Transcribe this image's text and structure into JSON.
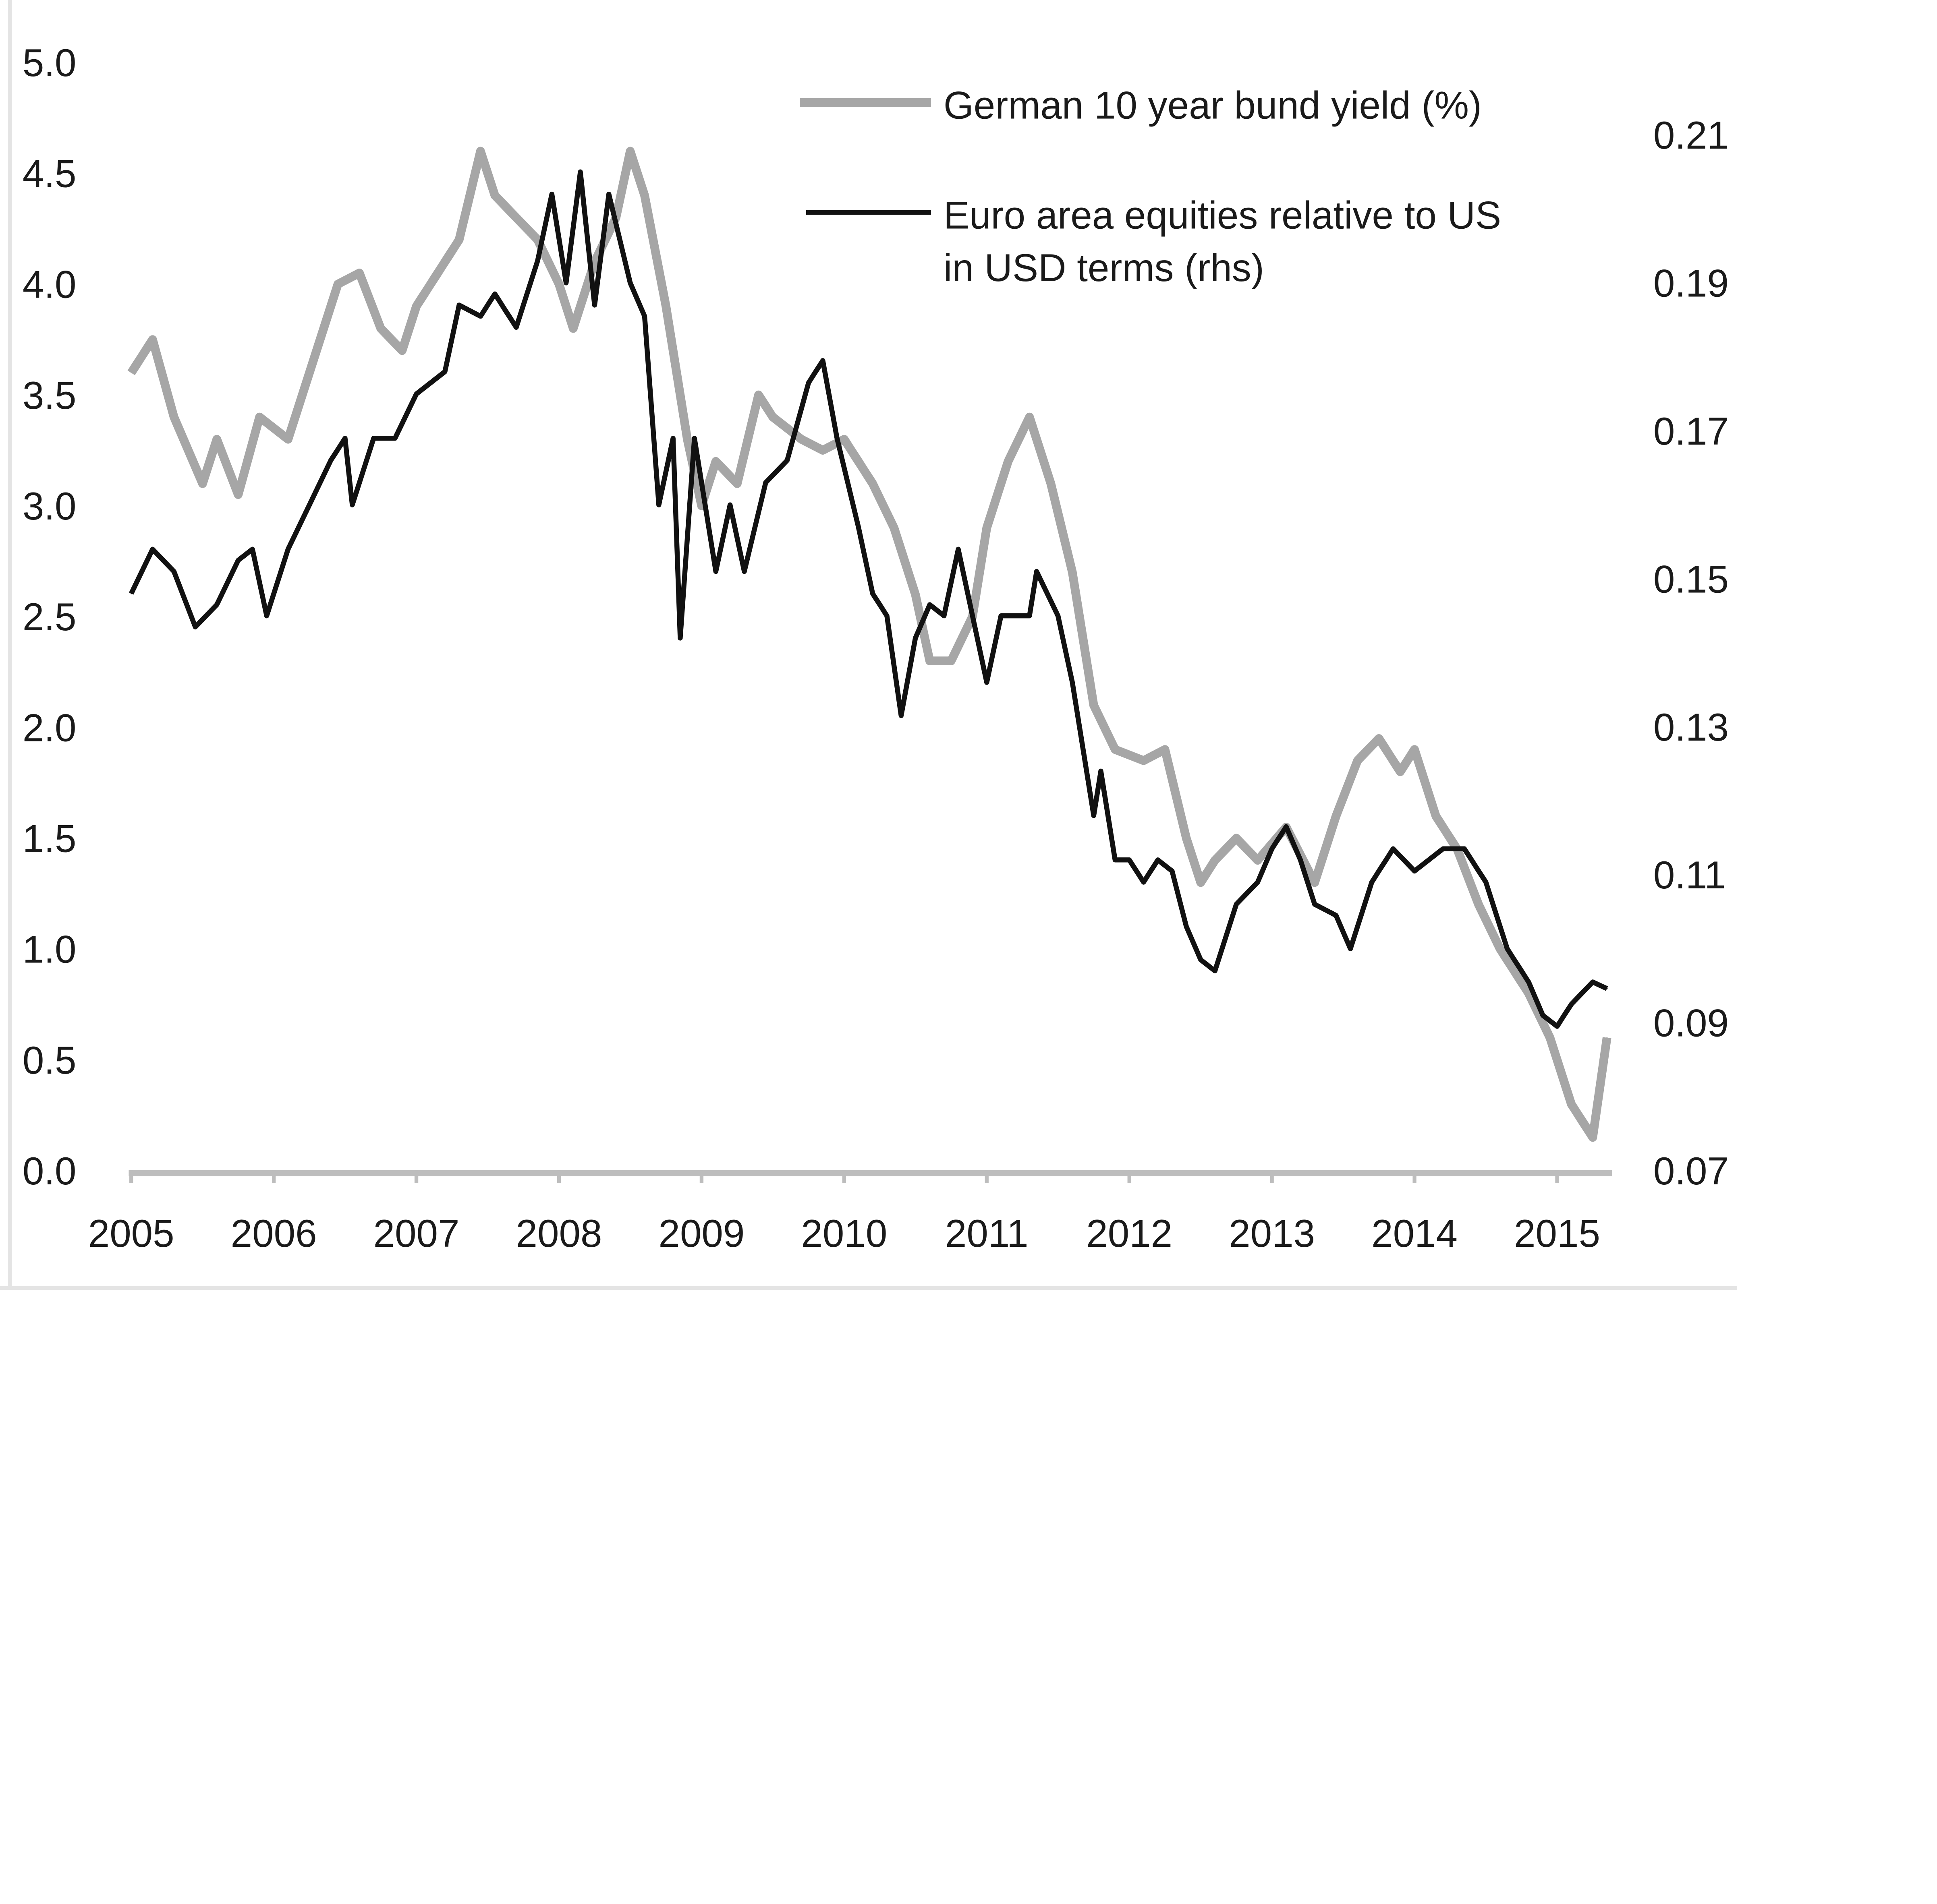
{
  "chart_data": {
    "type": "line",
    "title": "",
    "xlabel": "",
    "ylabel": "",
    "x_ticks": [
      "2005",
      "2006",
      "2007",
      "2008",
      "2009",
      "2010",
      "2011",
      "2012",
      "2013",
      "2014",
      "2015"
    ],
    "xlim": [
      2005,
      2015.4
    ],
    "y_left": {
      "ticks": [
        "0.0",
        "0.5",
        "1.0",
        "1.5",
        "2.0",
        "2.5",
        "3.0",
        "3.5",
        "4.0",
        "4.5",
        "5.0"
      ],
      "ylim": [
        0,
        5
      ]
    },
    "y_right": {
      "ticks": [
        "0.07",
        "0.09",
        "0.11",
        "0.13",
        "0.15",
        "0.17",
        "0.19",
        "0.21"
      ],
      "ylim": [
        0.07,
        0.21
      ]
    },
    "grid": false,
    "legend_position": "top-right",
    "series": [
      {
        "name": "German 10 year bund yield (%)",
        "axis": "left",
        "color": "#a6a6a6",
        "x": [
          2005.0,
          2005.15,
          2005.3,
          2005.5,
          2005.6,
          2005.75,
          2005.9,
          2006.1,
          2006.3,
          2006.45,
          2006.6,
          2006.75,
          2006.9,
          2007.0,
          2007.15,
          2007.3,
          2007.45,
          2007.55,
          2007.7,
          2007.85,
          2008.0,
          2008.1,
          2008.25,
          2008.4,
          2008.5,
          2008.6,
          2008.75,
          2008.9,
          2009.0,
          2009.1,
          2009.25,
          2009.4,
          2009.5,
          2009.7,
          2009.85,
          2010.0,
          2010.2,
          2010.35,
          2010.5,
          2010.6,
          2010.75,
          2010.9,
          2011.0,
          2011.15,
          2011.3,
          2011.45,
          2011.6,
          2011.75,
          2011.9,
          2012.1,
          2012.25,
          2012.4,
          2012.5,
          2012.6,
          2012.75,
          2012.9,
          2013.1,
          2013.3,
          2013.45,
          2013.6,
          2013.75,
          2013.9,
          2014.0,
          2014.15,
          2014.3,
          2014.45,
          2014.6,
          2014.8,
          2014.95,
          2015.1,
          2015.25,
          2015.35
        ],
        "y": [
          3.6,
          3.75,
          3.4,
          3.1,
          3.3,
          3.05,
          3.4,
          3.3,
          3.7,
          4.0,
          4.05,
          3.8,
          3.7,
          3.9,
          4.05,
          4.2,
          4.6,
          4.4,
          4.3,
          4.2,
          4.0,
          3.8,
          4.1,
          4.3,
          4.6,
          4.4,
          3.9,
          3.3,
          3.0,
          3.2,
          3.1,
          3.5,
          3.4,
          3.3,
          3.25,
          3.3,
          3.1,
          2.9,
          2.6,
          2.3,
          2.3,
          2.5,
          2.9,
          3.2,
          3.4,
          3.1,
          2.7,
          2.1,
          1.9,
          1.85,
          1.9,
          1.5,
          1.3,
          1.4,
          1.5,
          1.4,
          1.55,
          1.3,
          1.6,
          1.85,
          1.95,
          1.8,
          1.9,
          1.6,
          1.45,
          1.2,
          1.0,
          0.8,
          0.6,
          0.3,
          0.15,
          0.6
        ]
      },
      {
        "name": "Euro area equities relative to US in USD terms (rhs)",
        "axis": "right",
        "color": "#111111",
        "x": [
          2005.0,
          2005.15,
          2005.3,
          2005.45,
          2005.6,
          2005.75,
          2005.85,
          2005.95,
          2006.1,
          2006.25,
          2006.4,
          2006.5,
          2006.55,
          2006.7,
          2006.85,
          2007.0,
          2007.2,
          2007.3,
          2007.45,
          2007.55,
          2007.7,
          2007.85,
          2007.95,
          2008.05,
          2008.15,
          2008.25,
          2008.35,
          2008.5,
          2008.6,
          2008.7,
          2008.8,
          2008.85,
          2008.95,
          2009.1,
          2009.2,
          2009.3,
          2009.45,
          2009.6,
          2009.75,
          2009.85,
          2009.95,
          2010.1,
          2010.2,
          2010.3,
          2010.4,
          2010.5,
          2010.6,
          2010.7,
          2010.8,
          2010.9,
          2011.0,
          2011.1,
          2011.3,
          2011.35,
          2011.5,
          2011.6,
          2011.75,
          2011.8,
          2011.9,
          2012.0,
          2012.1,
          2012.2,
          2012.3,
          2012.4,
          2012.5,
          2012.6,
          2012.75,
          2012.9,
          2013.0,
          2013.1,
          2013.2,
          2013.3,
          2013.45,
          2013.55,
          2013.7,
          2013.85,
          2014.0,
          2014.2,
          2014.35,
          2014.5,
          2014.65,
          2014.8,
          2014.9,
          2015.0,
          2015.1,
          2015.25,
          2015.35
        ],
        "y": [
          0.148,
          0.154,
          0.151,
          0.1435,
          0.1465,
          0.1525,
          0.154,
          0.145,
          0.154,
          0.16,
          0.166,
          0.169,
          0.16,
          0.169,
          0.169,
          0.175,
          0.178,
          0.187,
          0.1855,
          0.1885,
          0.184,
          0.193,
          0.202,
          0.19,
          0.205,
          0.187,
          0.202,
          0.19,
          0.1855,
          0.16,
          0.169,
          0.142,
          0.169,
          0.151,
          0.16,
          0.151,
          0.163,
          0.166,
          0.1765,
          0.1795,
          0.169,
          0.157,
          0.148,
          0.145,
          0.1315,
          0.142,
          0.1465,
          0.145,
          0.154,
          0.145,
          0.136,
          0.145,
          0.145,
          0.151,
          0.145,
          0.136,
          0.118,
          0.124,
          0.112,
          0.112,
          0.109,
          0.112,
          0.1105,
          0.103,
          0.0985,
          0.097,
          0.106,
          0.109,
          0.1135,
          0.1165,
          0.112,
          0.106,
          0.1045,
          0.1,
          0.109,
          0.1135,
          0.1105,
          0.1135,
          0.1135,
          0.109,
          0.1,
          0.0955,
          0.091,
          0.0895,
          0.0925,
          0.0955,
          0.0946
        ]
      }
    ],
    "legend": {
      "entry1": "German 10 year bund yield (%)",
      "entry2_line1": "Euro area equities relative to US",
      "entry2_line2": "in USD terms (rhs)"
    }
  }
}
